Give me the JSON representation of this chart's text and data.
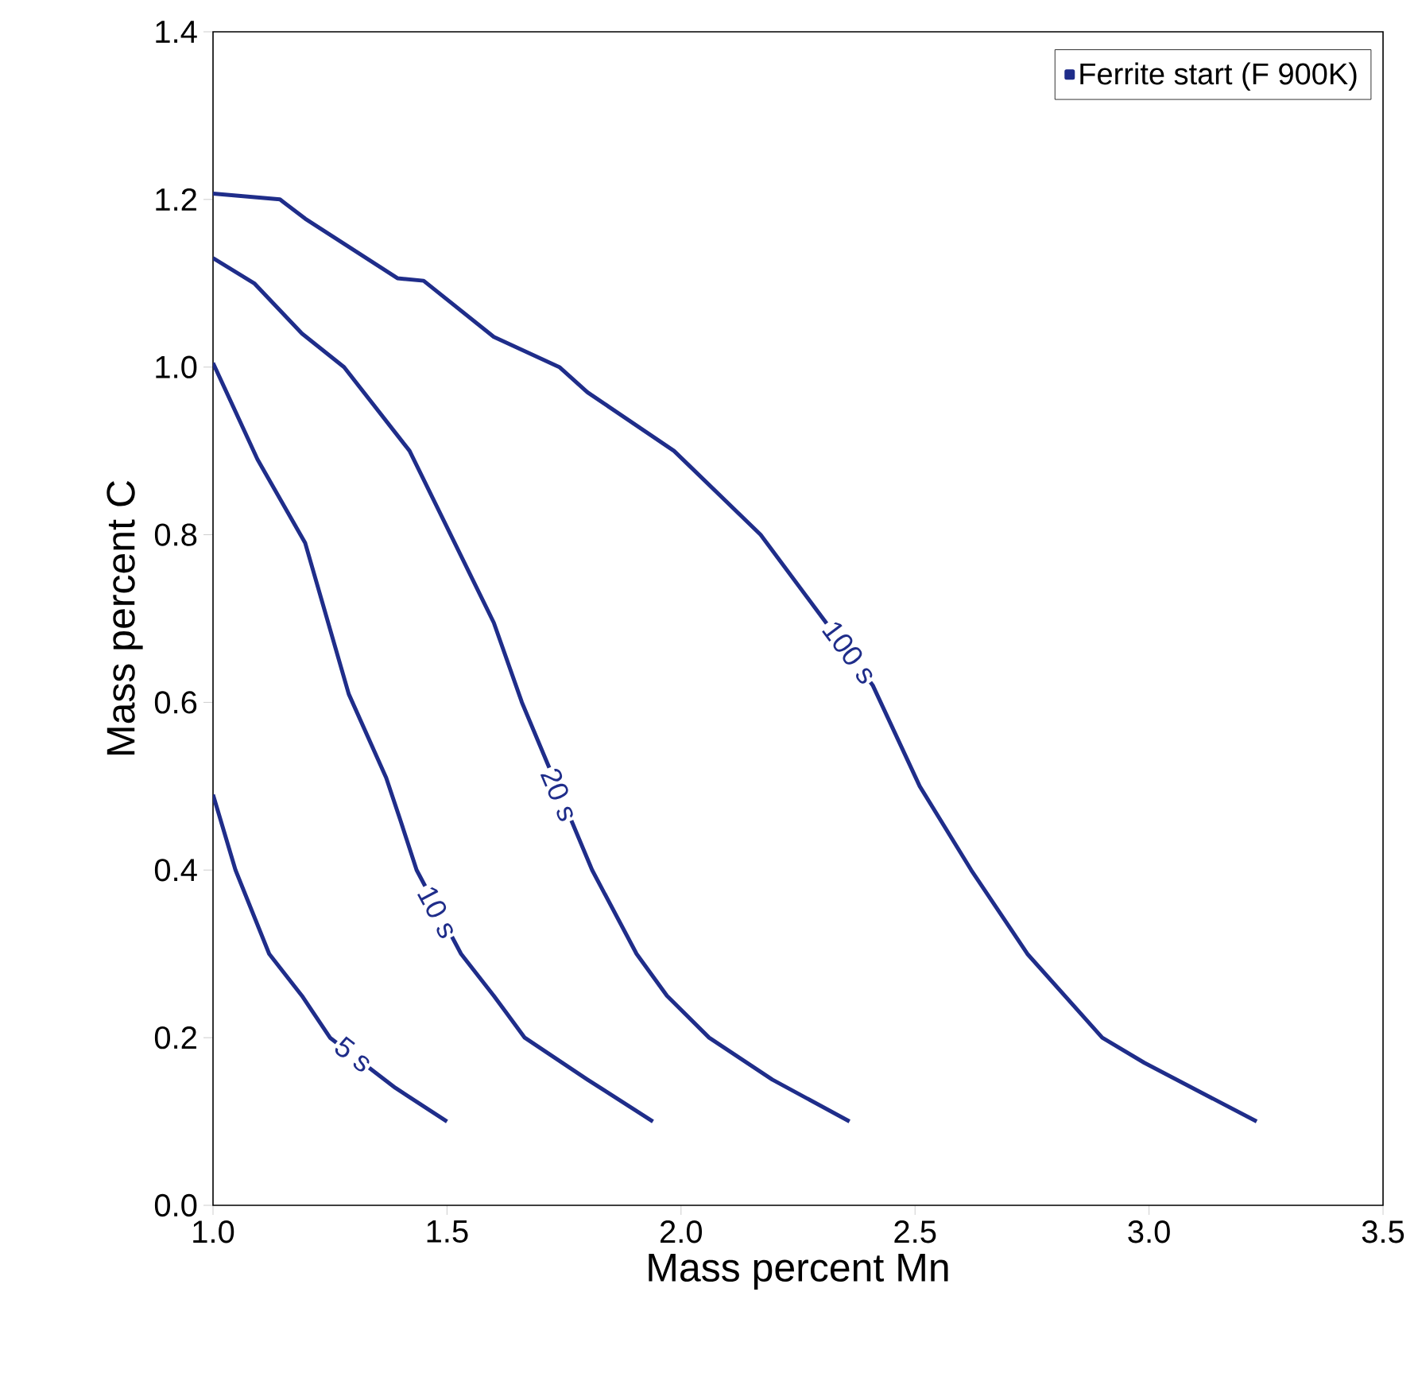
{
  "chart_data": {
    "type": "line",
    "xlabel": "Mass percent Mn",
    "ylabel": "Mass percent C",
    "xlim": [
      1.0,
      3.5
    ],
    "ylim": [
      0.0,
      1.4
    ],
    "xticks": [
      {
        "value": 1.0,
        "label": "1.0"
      },
      {
        "value": 1.5,
        "label": "1.5"
      },
      {
        "value": 2.0,
        "label": "2.0"
      },
      {
        "value": 2.5,
        "label": "2.5"
      },
      {
        "value": 3.0,
        "label": "3.0"
      },
      {
        "value": 3.5,
        "label": "3.5"
      }
    ],
    "yticks": [
      {
        "value": 0.0,
        "label": "0.0"
      },
      {
        "value": 0.2,
        "label": "0.2"
      },
      {
        "value": 0.4,
        "label": "0.4"
      },
      {
        "value": 0.6,
        "label": "0.6"
      },
      {
        "value": 0.8,
        "label": "0.8"
      },
      {
        "value": 1.0,
        "label": "1.0"
      },
      {
        "value": 1.2,
        "label": "1.2"
      },
      {
        "value": 1.4,
        "label": "1.4"
      }
    ],
    "grid": false,
    "legend": "top right",
    "marker": "none",
    "line_style": "solid",
    "series": [
      {
        "name": "Ferrite start (F 900K)",
        "color": "#1f2d8a",
        "x": [
          1.0,
          1.048,
          1.12,
          1.19,
          1.25,
          1.39,
          1.5
        ],
        "values": [
          0.49,
          0.4,
          0.3,
          0.25,
          0.2,
          0.14,
          0.1
        ]
      },
      {
        "color": "#1f2d8a",
        "x": [
          1.0,
          1.095,
          1.197,
          1.29,
          1.37,
          1.4,
          1.435,
          1.53,
          1.6,
          1.666,
          1.8,
          1.94
        ],
        "values": [
          1.005,
          0.89,
          0.79,
          0.61,
          0.51,
          0.46,
          0.4,
          0.3,
          0.25,
          0.2,
          0.15,
          0.1
        ]
      },
      {
        "color": "#1f2d8a",
        "x": [
          1.0,
          1.088,
          1.19,
          1.28,
          1.42,
          1.6,
          1.66,
          1.81,
          1.905,
          1.97,
          2.06,
          2.195,
          2.36
        ],
        "values": [
          1.13,
          1.1,
          1.04,
          1.0,
          0.9,
          0.695,
          0.6,
          0.4,
          0.3,
          0.25,
          0.2,
          0.15,
          0.1
        ]
      },
      {
        "color": "#1f2d8a",
        "x": [
          1.0,
          1.143,
          1.197,
          1.394,
          1.45,
          1.6,
          1.74,
          1.8,
          1.985,
          2.17,
          2.41,
          2.51,
          2.62,
          2.74,
          2.9,
          2.99,
          3.23
        ],
        "values": [
          1.207,
          1.2,
          1.177,
          1.106,
          1.103,
          1.036,
          1.0,
          0.97,
          0.9,
          0.8,
          0.62,
          0.5,
          0.4,
          0.3,
          0.2,
          0.17,
          0.1
        ]
      }
    ],
    "annotations": [
      {
        "text": "5 s",
        "x": 1.3,
        "y": 0.18
      },
      {
        "text": "10 s",
        "x": 1.48,
        "y": 0.35
      },
      {
        "text": "20 s",
        "x": 1.74,
        "y": 0.49
      },
      {
        "text": "100 s",
        "x": 2.36,
        "y": 0.66
      }
    ]
  }
}
